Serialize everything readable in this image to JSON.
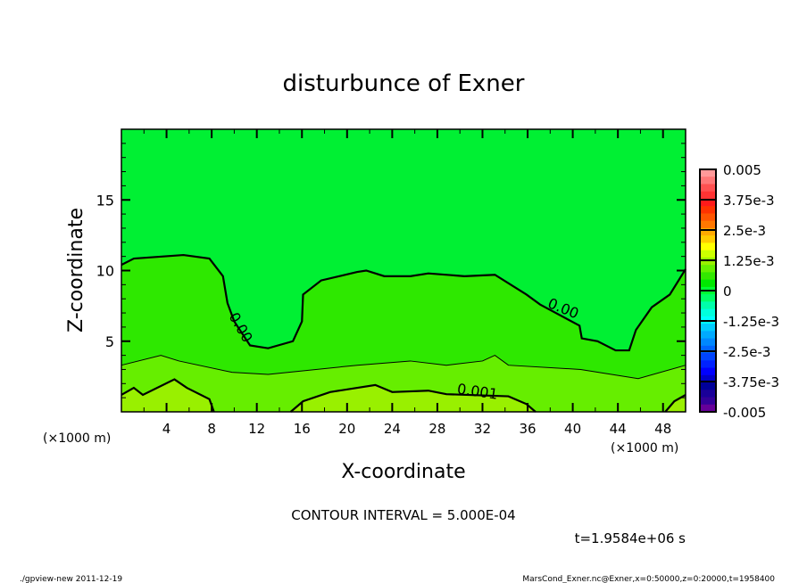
{
  "chart_data": {
    "type": "heatmap",
    "subtype": "filled-contour",
    "title": "disturbunce of Exner",
    "xlabel": "X-coordinate",
    "ylabel": "Z-coordinate",
    "x_unit_left": "(×1000 m)",
    "x_unit_right": "(×1000 m)",
    "xlim": [
      0,
      50
    ],
    "ylim": [
      0,
      20
    ],
    "xticks": [
      4,
      8,
      12,
      16,
      20,
      24,
      28,
      32,
      36,
      40,
      44,
      48
    ],
    "yticks": [
      5,
      10,
      15
    ],
    "contour_interval_text": "CONTOUR INTERVAL = 5.000E-04",
    "time_text": "t=1.9584e+06 s",
    "colorbar": {
      "min": -0.005,
      "max": 0.005,
      "levels": 20,
      "tick_labels": [
        "0.005",
        "3.75e-3",
        "2.5e-3",
        "1.25e-3",
        "0",
        "-1.25e-3",
        "-2.5e-3",
        "-3.75e-3",
        "-0.005"
      ],
      "colors": [
        "#ff9999",
        "#ff7777",
        "#ff5050",
        "#ff3333",
        "#ff1a1a",
        "#ff3300",
        "#ff5500",
        "#ff7700",
        "#ffaa00",
        "#ffcc00",
        "#ffff00",
        "#ccff00",
        "#99f000",
        "#66f000",
        "#33e800",
        "#00e800",
        "#00ff33",
        "#00ff66",
        "#00ffaa",
        "#00ffdd",
        "#00ffff",
        "#00ccff",
        "#00aaff",
        "#0088ff",
        "#0066ff",
        "#0044ff",
        "#0022ff",
        "#0000ff",
        "#0000cc",
        "#000099",
        "#1a0099",
        "#330099",
        "#660099"
      ]
    },
    "contours": [
      {
        "level": 0,
        "label": "0.00",
        "weight": "thick",
        "points": [
          [
            0,
            10.4
          ],
          [
            1.1,
            10.85
          ],
          [
            5.5,
            11.1
          ],
          [
            7.8,
            10.85
          ],
          [
            9,
            9.6
          ],
          [
            9.4,
            7.7
          ],
          [
            10,
            6.4
          ],
          [
            11.4,
            4.7
          ],
          [
            13,
            4.5
          ],
          [
            15.2,
            5.0
          ],
          [
            16,
            6.4
          ],
          [
            16.1,
            8.3
          ],
          [
            17.7,
            9.3
          ],
          [
            20.9,
            9.9
          ],
          [
            21.7,
            10.0
          ],
          [
            23.3,
            9.6
          ],
          [
            25.6,
            9.6
          ],
          [
            27.2,
            9.8
          ],
          [
            30.4,
            9.6
          ],
          [
            33.1,
            9.7
          ],
          [
            35.9,
            8.3
          ],
          [
            37.1,
            7.6
          ],
          [
            40.6,
            6.1
          ],
          [
            40.8,
            5.2
          ],
          [
            42.2,
            5.0
          ],
          [
            43.8,
            4.35
          ],
          [
            45,
            4.35
          ],
          [
            45.6,
            5.8
          ],
          [
            47,
            7.4
          ],
          [
            48.6,
            8.3
          ],
          [
            50,
            10.1
          ]
        ]
      },
      {
        "level": 0.0005,
        "label": "",
        "weight": "thin",
        "points": [
          [
            0,
            3.3
          ],
          [
            3.5,
            4.0
          ],
          [
            5.1,
            3.6
          ],
          [
            9.8,
            2.8
          ],
          [
            13,
            2.65
          ],
          [
            20.9,
            3.3
          ],
          [
            25.6,
            3.6
          ],
          [
            28.8,
            3.3
          ],
          [
            32,
            3.6
          ],
          [
            33.1,
            4.0
          ],
          [
            34.3,
            3.3
          ],
          [
            40.7,
            3.0
          ],
          [
            45.8,
            2.35
          ],
          [
            50,
            3.3
          ]
        ]
      },
      {
        "level": 0.001,
        "label": "",
        "weight": "thick",
        "points": [
          [
            0,
            1.2
          ],
          [
            1.1,
            1.7
          ],
          [
            1.9,
            1.2
          ],
          [
            4.7,
            2.3
          ],
          [
            5.8,
            1.7
          ],
          [
            7.8,
            0.9
          ],
          [
            8.2,
            0
          ]
        ]
      },
      {
        "level": 0.001,
        "label": "0.001",
        "weight": "thick",
        "points": [
          [
            15,
            0
          ],
          [
            16.1,
            0.75
          ],
          [
            18.5,
            1.4
          ],
          [
            22.5,
            1.9
          ],
          [
            24,
            1.4
          ],
          [
            27.2,
            1.5
          ],
          [
            28.8,
            1.25
          ],
          [
            34.3,
            1.1
          ],
          [
            35.9,
            0.55
          ],
          [
            36.7,
            0
          ]
        ]
      },
      {
        "level": 0.001,
        "label": "",
        "weight": "thick",
        "points": [
          [
            48.2,
            0
          ],
          [
            49,
            0.75
          ],
          [
            50,
            1.2
          ]
        ]
      }
    ],
    "contour_labels": [
      {
        "text": "0.00",
        "x": 10.2,
        "z": 5.8,
        "angle": 60
      },
      {
        "text": "0.00",
        "x": 39.0,
        "z": 7.0,
        "angle": 22
      },
      {
        "text": "0.001",
        "x": 31.5,
        "z": 1.1,
        "angle": 8
      }
    ],
    "band_colors": {
      "below_zero": "#00f033",
      "zero_to_5e-4": "#2ee800",
      "5e-4_to_1e-3": "#66ee00",
      "above_1e-3": "#99f000"
    }
  },
  "footer": {
    "left": "./gpview-new   2011-12-19",
    "right": "MarsCond_Exner.nc@Exner,x=0:50000,z=0:20000,t=1958400"
  }
}
